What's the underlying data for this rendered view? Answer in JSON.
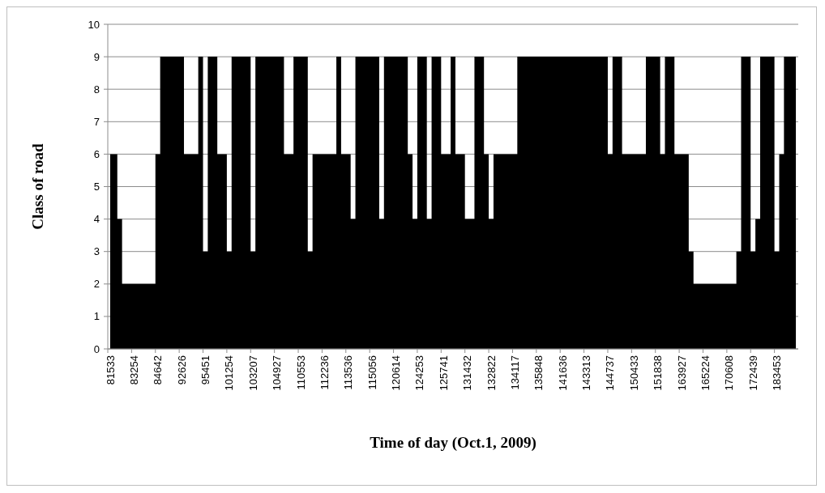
{
  "chart_data": {
    "type": "area",
    "xlabel": "Time of day (Oct.1, 2009)",
    "ylabel": "Class of road",
    "categories": [
      "81533",
      null,
      null,
      null,
      null,
      "83254",
      null,
      null,
      null,
      null,
      "84642",
      null,
      null,
      null,
      null,
      "92626",
      null,
      null,
      null,
      null,
      "95451",
      null,
      null,
      null,
      null,
      "101254",
      null,
      null,
      null,
      null,
      "103207",
      null,
      null,
      null,
      null,
      "104927",
      null,
      null,
      null,
      null,
      "110553",
      null,
      null,
      null,
      null,
      "112236",
      null,
      null,
      null,
      null,
      "113536",
      null,
      null,
      null,
      null,
      "115056",
      null,
      null,
      null,
      null,
      "120614",
      null,
      null,
      null,
      null,
      "124253",
      null,
      null,
      null,
      null,
      "125741",
      null,
      null,
      null,
      null,
      "131432",
      null,
      null,
      null,
      null,
      "132822",
      null,
      null,
      null,
      null,
      "134117",
      null,
      null,
      null,
      null,
      "135848",
      null,
      null,
      null,
      null,
      "141636",
      null,
      null,
      null,
      null,
      "143313",
      null,
      null,
      null,
      null,
      "144737",
      null,
      null,
      null,
      null,
      "150433",
      null,
      null,
      null,
      null,
      "151838",
      null,
      null,
      null,
      null,
      "163927",
      null,
      null,
      null,
      null,
      "165224",
      null,
      null,
      null,
      null,
      "170608",
      null,
      null,
      null,
      null,
      "172439",
      null,
      null,
      null,
      null,
      "183453",
      null,
      null,
      null,
      null
    ],
    "values": [
      6,
      6,
      4,
      2,
      2,
      2,
      2,
      2,
      2,
      2,
      6,
      9,
      9,
      9,
      9,
      9,
      6,
      6,
      6,
      9,
      3,
      9,
      9,
      6,
      6,
      3,
      9,
      9,
      9,
      9,
      3,
      9,
      9,
      9,
      9,
      9,
      9,
      6,
      6,
      9,
      9,
      9,
      3,
      6,
      6,
      6,
      6,
      6,
      9,
      6,
      6,
      4,
      9,
      9,
      9,
      9,
      9,
      4,
      9,
      9,
      9,
      9,
      9,
      6,
      4,
      9,
      9,
      4,
      9,
      9,
      6,
      6,
      9,
      6,
      6,
      4,
      4,
      9,
      9,
      6,
      4,
      6,
      6,
      6,
      6,
      6,
      9,
      9,
      9,
      9,
      9,
      9,
      9,
      9,
      9,
      9,
      9,
      9,
      9,
      9,
      9,
      9,
      9,
      9,
      9,
      6,
      9,
      9,
      6,
      6,
      6,
      6,
      6,
      9,
      9,
      9,
      6,
      9,
      9,
      6,
      6,
      6,
      3,
      2,
      2,
      2,
      2,
      2,
      2,
      2,
      2,
      2,
      3,
      9,
      9,
      3,
      4,
      9,
      9,
      9,
      3,
      6,
      9,
      9,
      9
    ],
    "color": "#000000",
    "ylim": [
      0,
      10
    ],
    "yticks": [
      0,
      1,
      2,
      3,
      4,
      5,
      6,
      7,
      8,
      9,
      10
    ],
    "grid": "y"
  }
}
